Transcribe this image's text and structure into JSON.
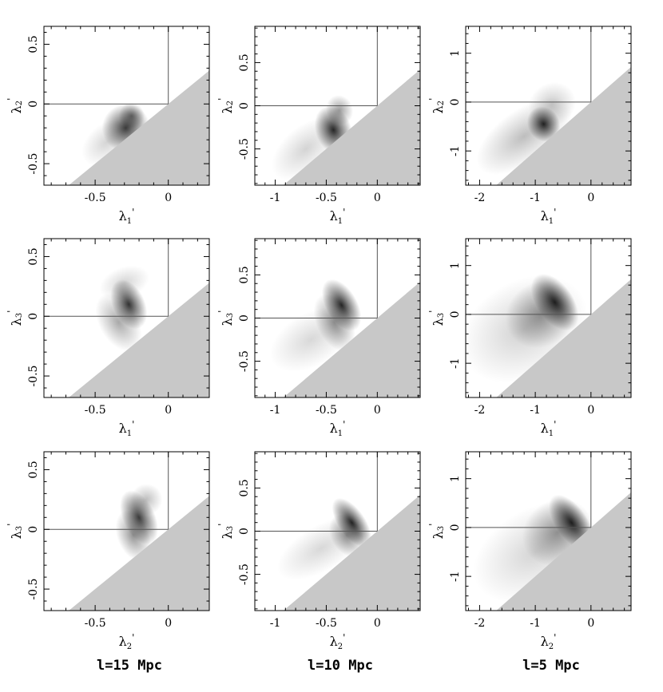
{
  "figure": {
    "column_captions": [
      "l=15 Mpc",
      "l=10 Mpc",
      "l=5 Mpc"
    ]
  },
  "colors": {
    "excluded_region": "#c8c8c8",
    "density_ink": "#000000",
    "axis": "#000000"
  },
  "chart_data": [
    {
      "type": "heatmap",
      "row": 0,
      "col": 0,
      "column_caption": "l=15 Mpc",
      "xlabel": "λ₁'",
      "ylabel": "λ₂'",
      "xlim": [
        -0.85,
        0.28
      ],
      "ylim": [
        -0.68,
        0.65
      ],
      "xticks": [
        -0.5,
        0
      ],
      "xticklabels": [
        "-0.5",
        "0"
      ],
      "yticks": [
        -0.5,
        0,
        0.5
      ],
      "yticklabels": [
        "-0.5",
        "0",
        "0.5"
      ],
      "reference_lines": {
        "x": 0,
        "y": 0
      },
      "excluded_region": "below diagonal y = x",
      "density_blobs": [
        {
          "x": -0.29,
          "y": -0.2,
          "sx": 0.075,
          "sy": 0.09,
          "angle": 40,
          "weight": 0.9
        },
        {
          "x": -0.25,
          "y": -0.1,
          "sx": 0.04,
          "sy": 0.05,
          "angle": 30,
          "weight": 0.55
        },
        {
          "x": -0.42,
          "y": -0.32,
          "sx": 0.09,
          "sy": 0.07,
          "angle": 40,
          "weight": 0.2
        }
      ]
    },
    {
      "type": "heatmap",
      "row": 0,
      "col": 1,
      "column_caption": "l=10 Mpc",
      "xlabel": "λ₁'",
      "ylabel": "λ₂'",
      "xlim": [
        -1.2,
        0.42
      ],
      "ylim": [
        -0.92,
        0.92
      ],
      "xticks": [
        -1,
        -0.5,
        0
      ],
      "xticklabels": [
        "-1",
        "-0.5",
        "0"
      ],
      "yticks": [
        -0.5,
        0,
        0.5
      ],
      "yticklabels": [
        "-0.5",
        "0",
        "0.5"
      ],
      "reference_lines": {
        "x": 0,
        "y": 0
      },
      "excluded_region": "below diagonal y = x",
      "density_blobs": [
        {
          "x": -0.43,
          "y": -0.28,
          "sx": 0.08,
          "sy": 0.13,
          "angle": 20,
          "weight": 1.0
        },
        {
          "x": -0.37,
          "y": -0.05,
          "sx": 0.06,
          "sy": 0.08,
          "angle": 20,
          "weight": 0.45
        },
        {
          "x": -0.7,
          "y": -0.5,
          "sx": 0.18,
          "sy": 0.12,
          "angle": 40,
          "weight": 0.2
        }
      ]
    },
    {
      "type": "heatmap",
      "row": 0,
      "col": 2,
      "column_caption": "l=5 Mpc",
      "xlabel": "λ₁'",
      "ylabel": "λ₂'",
      "xlim": [
        -2.25,
        0.72
      ],
      "ylim": [
        -1.7,
        1.55
      ],
      "xticks": [
        -2,
        -1,
        0
      ],
      "xticklabels": [
        "-2",
        "-1",
        "0"
      ],
      "yticks": [
        -1,
        0,
        1
      ],
      "yticklabels": [
        "-1",
        "0",
        "1"
      ],
      "reference_lines": {
        "x": 0,
        "y": 0
      },
      "excluded_region": "below diagonal y = x",
      "density_blobs": [
        {
          "x": -0.85,
          "y": -0.45,
          "sx": 0.13,
          "sy": 0.17,
          "angle": 30,
          "weight": 1.0
        },
        {
          "x": -1.2,
          "y": -0.7,
          "sx": 0.45,
          "sy": 0.25,
          "angle": 35,
          "weight": 0.3
        },
        {
          "x": -0.7,
          "y": -0.05,
          "sx": 0.2,
          "sy": 0.2,
          "angle": 30,
          "weight": 0.25
        }
      ]
    },
    {
      "type": "heatmap",
      "row": 1,
      "col": 0,
      "column_caption": "l=15 Mpc",
      "xlabel": "λ₁'",
      "ylabel": "λ₃'",
      "xlim": [
        -0.85,
        0.28
      ],
      "ylim": [
        -0.68,
        0.65
      ],
      "xticks": [
        -0.5,
        0
      ],
      "xticklabels": [
        "-0.5",
        "0"
      ],
      "yticks": [
        -0.5,
        0,
        0.5
      ],
      "yticklabels": [
        "-0.5",
        "0",
        "0.5"
      ],
      "reference_lines": {
        "x": 0,
        "y": 0
      },
      "excluded_region": "below diagonal y = x",
      "density_blobs": [
        {
          "x": -0.27,
          "y": 0.1,
          "sx": 0.05,
          "sy": 0.1,
          "angle": 25,
          "weight": 0.95
        },
        {
          "x": -0.34,
          "y": -0.05,
          "sx": 0.06,
          "sy": 0.12,
          "angle": 30,
          "weight": 0.4
        },
        {
          "x": -0.3,
          "y": 0.28,
          "sx": 0.08,
          "sy": 0.06,
          "angle": 20,
          "weight": 0.2
        }
      ]
    },
    {
      "type": "heatmap",
      "row": 1,
      "col": 1,
      "column_caption": "l=10 Mpc",
      "xlabel": "λ₁'",
      "ylabel": "λ₃'",
      "xlim": [
        -1.2,
        0.42
      ],
      "ylim": [
        -0.92,
        0.92
      ],
      "xticks": [
        -1,
        -0.5,
        0
      ],
      "xticklabels": [
        "-1",
        "-0.5",
        "0"
      ],
      "yticks": [
        -0.5,
        0,
        0.5
      ],
      "yticklabels": [
        "-0.5",
        "0",
        "0.5"
      ],
      "reference_lines": {
        "x": 0,
        "y": 0
      },
      "excluded_region": "below diagonal y = x",
      "density_blobs": [
        {
          "x": -0.35,
          "y": 0.15,
          "sx": 0.07,
          "sy": 0.15,
          "angle": 30,
          "weight": 1.0
        },
        {
          "x": -0.42,
          "y": -0.05,
          "sx": 0.08,
          "sy": 0.16,
          "angle": 25,
          "weight": 0.5
        },
        {
          "x": -0.65,
          "y": -0.25,
          "sx": 0.2,
          "sy": 0.14,
          "angle": 30,
          "weight": 0.18
        }
      ]
    },
    {
      "type": "heatmap",
      "row": 1,
      "col": 2,
      "column_caption": "l=5 Mpc",
      "xlabel": "λ₁'",
      "ylabel": "λ₃'",
      "xlim": [
        -2.25,
        0.72
      ],
      "ylim": [
        -1.7,
        1.55
      ],
      "xticks": [
        -2,
        -1,
        0
      ],
      "xticklabels": [
        "-2",
        "-1",
        "0"
      ],
      "yticks": [
        -1,
        0,
        1
      ],
      "yticklabels": [
        "-1",
        "0",
        "1"
      ],
      "reference_lines": {
        "x": 0,
        "y": 0
      },
      "excluded_region": "below diagonal y = x",
      "density_blobs": [
        {
          "x": -0.65,
          "y": 0.25,
          "sx": 0.15,
          "sy": 0.3,
          "angle": 35,
          "weight": 1.0
        },
        {
          "x": -0.9,
          "y": 0.0,
          "sx": 0.3,
          "sy": 0.3,
          "angle": 35,
          "weight": 0.45
        },
        {
          "x": -1.2,
          "y": -0.3,
          "sx": 0.55,
          "sy": 0.45,
          "angle": 30,
          "weight": 0.22
        }
      ]
    },
    {
      "type": "heatmap",
      "row": 2,
      "col": 0,
      "column_caption": "l=15 Mpc",
      "xlabel": "λ₂'",
      "ylabel": "λ₃'",
      "xlim": [
        -0.85,
        0.28
      ],
      "ylim": [
        -0.68,
        0.65
      ],
      "xticks": [
        -0.5,
        0
      ],
      "xticklabels": [
        "-0.5",
        "0"
      ],
      "yticks": [
        -0.5,
        0,
        0.5
      ],
      "yticklabels": [
        "-0.5",
        "0",
        "0.5"
      ],
      "reference_lines": {
        "x": 0,
        "y": 0
      },
      "excluded_region": "below diagonal y = x",
      "density_blobs": [
        {
          "x": -0.2,
          "y": 0.1,
          "sx": 0.05,
          "sy": 0.11,
          "angle": 25,
          "weight": 0.9
        },
        {
          "x": -0.24,
          "y": -0.05,
          "sx": 0.05,
          "sy": 0.1,
          "angle": 20,
          "weight": 0.5
        },
        {
          "x": -0.15,
          "y": 0.25,
          "sx": 0.05,
          "sy": 0.06,
          "angle": 20,
          "weight": 0.3
        }
      ]
    },
    {
      "type": "heatmap",
      "row": 2,
      "col": 1,
      "column_caption": "l=10 Mpc",
      "xlabel": "λ₂'",
      "ylabel": "λ₃'",
      "xlim": [
        -1.2,
        0.42
      ],
      "ylim": [
        -0.92,
        0.92
      ],
      "xticks": [
        -1,
        -0.5,
        0
      ],
      "xticklabels": [
        "-1",
        "-0.5",
        "0"
      ],
      "yticks": [
        -0.5,
        0,
        0.5
      ],
      "yticklabels": [
        "-0.5",
        "0",
        "0.5"
      ],
      "reference_lines": {
        "x": 0,
        "y": 0
      },
      "excluded_region": "below diagonal y = x",
      "density_blobs": [
        {
          "x": -0.25,
          "y": 0.1,
          "sx": 0.06,
          "sy": 0.15,
          "angle": 35,
          "weight": 1.0
        },
        {
          "x": -0.3,
          "y": -0.05,
          "sx": 0.07,
          "sy": 0.12,
          "angle": 30,
          "weight": 0.5
        },
        {
          "x": -0.55,
          "y": -0.2,
          "sx": 0.22,
          "sy": 0.12,
          "angle": 30,
          "weight": 0.18
        }
      ]
    },
    {
      "type": "heatmap",
      "row": 2,
      "col": 2,
      "column_caption": "l=5 Mpc",
      "xlabel": "λ₂'",
      "ylabel": "λ₃'",
      "xlim": [
        -2.25,
        0.72
      ],
      "ylim": [
        -1.7,
        1.55
      ],
      "xticks": [
        -2,
        -1,
        0
      ],
      "xticklabels": [
        "-2",
        "-1",
        "0"
      ],
      "yticks": [
        -1,
        0,
        1
      ],
      "yticklabels": [
        "-1",
        "0",
        "1"
      ],
      "reference_lines": {
        "x": 0,
        "y": 0
      },
      "excluded_region": "below diagonal y = x",
      "density_blobs": [
        {
          "x": -0.35,
          "y": 0.1,
          "sx": 0.13,
          "sy": 0.3,
          "angle": 35,
          "weight": 1.0
        },
        {
          "x": -0.6,
          "y": -0.1,
          "sx": 0.3,
          "sy": 0.3,
          "angle": 35,
          "weight": 0.45
        },
        {
          "x": -1.0,
          "y": -0.5,
          "sx": 0.55,
          "sy": 0.4,
          "angle": 30,
          "weight": 0.2
        }
      ]
    }
  ]
}
